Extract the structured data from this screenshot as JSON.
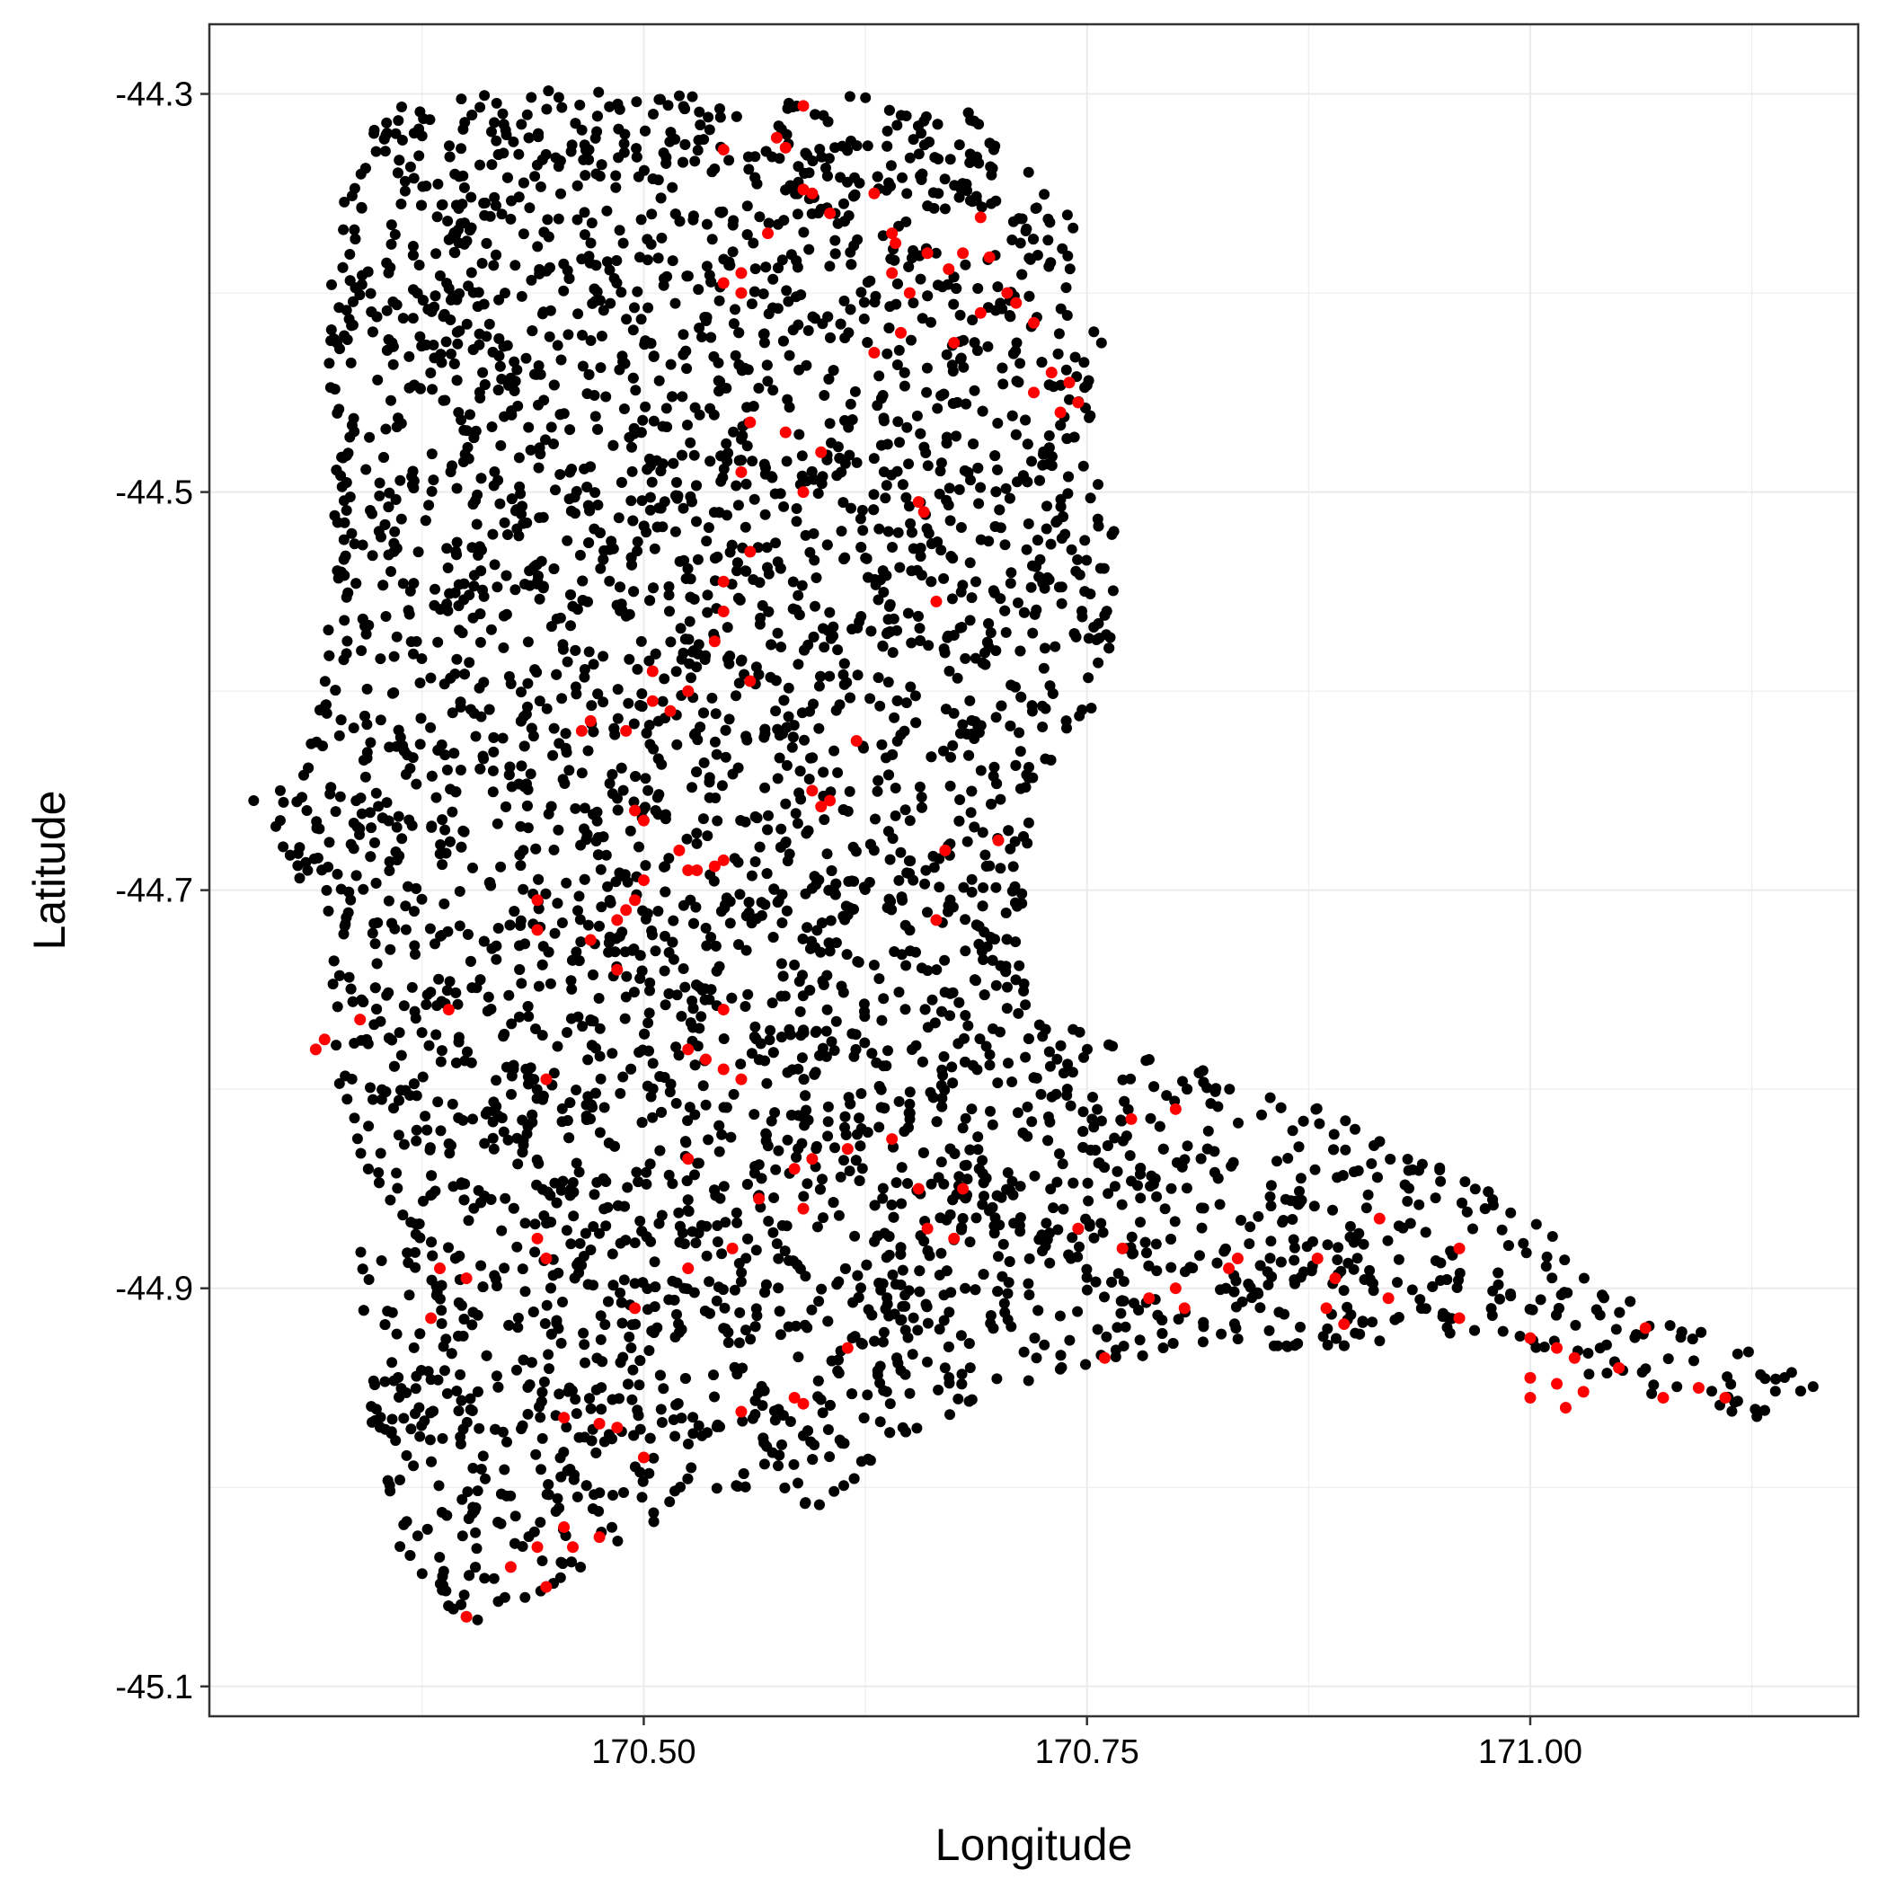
{
  "chart_data": {
    "type": "scatter",
    "title": "",
    "xlabel": "Longitude",
    "ylabel": "Latitude",
    "xlim": [
      170.255,
      171.185
    ],
    "ylim": [
      -45.115,
      -44.265
    ],
    "x_ticks": [
      170.5,
      170.75,
      171.0
    ],
    "x_tick_labels": [
      "170.50",
      "170.75",
      "171.00"
    ],
    "x_minor_ticks": [
      170.375,
      170.625,
      170.875,
      171.125
    ],
    "y_ticks": [
      -44.3,
      -44.5,
      -44.7,
      -44.9,
      -45.1
    ],
    "y_tick_labels": [
      "-44.3",
      "-44.5",
      "-44.7",
      "-44.9",
      "-45.1"
    ],
    "y_minor_ticks": [
      -44.4,
      -44.6,
      -44.8,
      -45.0
    ],
    "grid": true,
    "legend": "none",
    "colors": {
      "black_points": "#000000",
      "red_points": "#ff0000",
      "grid": "#ebebeb",
      "border": "#333333"
    },
    "series": [
      {
        "color": "#000000",
        "region_outline": [
          [
            170.345,
            -44.302
          ],
          [
            170.45,
            -44.298
          ],
          [
            170.55,
            -44.302
          ],
          [
            170.63,
            -44.298
          ],
          [
            170.68,
            -44.305
          ],
          [
            170.74,
            -44.36
          ],
          [
            170.76,
            -44.42
          ],
          [
            170.755,
            -44.47
          ],
          [
            170.77,
            -44.54
          ],
          [
            170.76,
            -44.6
          ],
          [
            170.72,
            -44.65
          ],
          [
            170.715,
            -44.72
          ],
          [
            170.72,
            -44.76
          ],
          [
            170.78,
            -44.78
          ],
          [
            170.86,
            -44.8
          ],
          [
            170.93,
            -44.83
          ],
          [
            171.0,
            -44.86
          ],
          [
            171.05,
            -44.9
          ],
          [
            171.12,
            -44.93
          ],
          [
            171.165,
            -44.948
          ],
          [
            171.13,
            -44.965
          ],
          [
            171.06,
            -44.955
          ],
          [
            170.98,
            -44.92
          ],
          [
            170.9,
            -44.93
          ],
          [
            170.82,
            -44.93
          ],
          [
            170.74,
            -44.94
          ],
          [
            170.68,
            -44.96
          ],
          [
            170.64,
            -44.98
          ],
          [
            170.6,
            -45.01
          ],
          [
            170.55,
            -45.0
          ],
          [
            170.5,
            -45.02
          ],
          [
            170.45,
            -45.05
          ],
          [
            170.42,
            -45.07
          ],
          [
            170.375,
            -45.065
          ],
          [
            170.35,
            -45.0
          ],
          [
            170.34,
            -44.92
          ],
          [
            170.33,
            -44.82
          ],
          [
            170.32,
            -44.72
          ],
          [
            170.29,
            -44.67
          ],
          [
            170.32,
            -44.6
          ],
          [
            170.325,
            -44.5
          ],
          [
            170.32,
            -44.38
          ],
          [
            170.34,
            -44.33
          ]
        ],
        "approx_point_count": 5000
      },
      {
        "color": "#ff0000",
        "points": [
          [
            170.59,
            -44.306
          ],
          [
            170.575,
            -44.322
          ],
          [
            170.58,
            -44.327
          ],
          [
            170.545,
            -44.328
          ],
          [
            170.63,
            -44.35
          ],
          [
            170.595,
            -44.35
          ],
          [
            170.605,
            -44.36
          ],
          [
            170.59,
            -44.348
          ],
          [
            170.69,
            -44.362
          ],
          [
            170.64,
            -44.37
          ],
          [
            170.57,
            -44.37
          ],
          [
            170.642,
            -44.375
          ],
          [
            170.66,
            -44.38
          ],
          [
            170.68,
            -44.38
          ],
          [
            170.695,
            -44.382
          ],
          [
            170.672,
            -44.388
          ],
          [
            170.555,
            -44.39
          ],
          [
            170.64,
            -44.39
          ],
          [
            170.545,
            -44.395
          ],
          [
            170.555,
            -44.4
          ],
          [
            170.705,
            -44.4
          ],
          [
            170.65,
            -44.4
          ],
          [
            170.71,
            -44.405
          ],
          [
            170.69,
            -44.41
          ],
          [
            170.72,
            -44.415
          ],
          [
            170.645,
            -44.42
          ],
          [
            170.675,
            -44.425
          ],
          [
            170.63,
            -44.43
          ],
          [
            170.73,
            -44.44
          ],
          [
            170.74,
            -44.445
          ],
          [
            170.72,
            -44.45
          ],
          [
            170.745,
            -44.455
          ],
          [
            170.735,
            -44.46
          ],
          [
            170.56,
            -44.465
          ],
          [
            170.58,
            -44.47
          ],
          [
            170.6,
            -44.48
          ],
          [
            170.555,
            -44.49
          ],
          [
            170.59,
            -44.5
          ],
          [
            170.655,
            -44.505
          ],
          [
            170.658,
            -44.51
          ],
          [
            170.56,
            -44.53
          ],
          [
            170.545,
            -44.545
          ],
          [
            170.665,
            -44.555
          ],
          [
            170.545,
            -44.56
          ],
          [
            170.54,
            -44.575
          ],
          [
            170.505,
            -44.59
          ],
          [
            170.56,
            -44.595
          ],
          [
            170.525,
            -44.6
          ],
          [
            170.505,
            -44.605
          ],
          [
            170.515,
            -44.61
          ],
          [
            170.47,
            -44.615
          ],
          [
            170.465,
            -44.62
          ],
          [
            170.49,
            -44.62
          ],
          [
            170.62,
            -44.625
          ],
          [
            170.595,
            -44.65
          ],
          [
            170.605,
            -44.655
          ],
          [
            170.6,
            -44.658
          ],
          [
            170.495,
            -44.66
          ],
          [
            170.5,
            -44.665
          ],
          [
            170.7,
            -44.675
          ],
          [
            170.52,
            -44.68
          ],
          [
            170.67,
            -44.68
          ],
          [
            170.545,
            -44.685
          ],
          [
            170.54,
            -44.688
          ],
          [
            170.525,
            -44.69
          ],
          [
            170.53,
            -44.69
          ],
          [
            170.5,
            -44.695
          ],
          [
            170.495,
            -44.705
          ],
          [
            170.44,
            -44.705
          ],
          [
            170.49,
            -44.71
          ],
          [
            170.665,
            -44.715
          ],
          [
            170.485,
            -44.715
          ],
          [
            170.44,
            -44.72
          ],
          [
            170.47,
            -44.725
          ],
          [
            170.485,
            -44.74
          ],
          [
            170.39,
            -44.76
          ],
          [
            170.34,
            -44.765
          ],
          [
            170.545,
            -44.76
          ],
          [
            170.32,
            -44.775
          ],
          [
            170.315,
            -44.78
          ],
          [
            170.525,
            -44.78
          ],
          [
            170.535,
            -44.785
          ],
          [
            170.545,
            -44.79
          ],
          [
            170.555,
            -44.795
          ],
          [
            170.445,
            -44.795
          ],
          [
            170.8,
            -44.81
          ],
          [
            170.775,
            -44.815
          ],
          [
            170.64,
            -44.825
          ],
          [
            170.615,
            -44.83
          ],
          [
            170.595,
            -44.835
          ],
          [
            170.525,
            -44.835
          ],
          [
            170.585,
            -44.84
          ],
          [
            170.655,
            -44.85
          ],
          [
            170.68,
            -44.85
          ],
          [
            170.565,
            -44.855
          ],
          [
            170.59,
            -44.86
          ],
          [
            170.915,
            -44.865
          ],
          [
            170.66,
            -44.87
          ],
          [
            170.745,
            -44.87
          ],
          [
            170.675,
            -44.875
          ],
          [
            170.44,
            -44.875
          ],
          [
            170.55,
            -44.88
          ],
          [
            170.96,
            -44.88
          ],
          [
            170.445,
            -44.885
          ],
          [
            170.77,
            -44.88
          ],
          [
            170.835,
            -44.885
          ],
          [
            170.88,
            -44.885
          ],
          [
            170.525,
            -44.89
          ],
          [
            170.83,
            -44.89
          ],
          [
            170.385,
            -44.89
          ],
          [
            170.4,
            -44.895
          ],
          [
            170.8,
            -44.9
          ],
          [
            170.89,
            -44.895
          ],
          [
            170.785,
            -44.905
          ],
          [
            170.92,
            -44.905
          ],
          [
            170.495,
            -44.91
          ],
          [
            170.885,
            -44.91
          ],
          [
            170.805,
            -44.91
          ],
          [
            170.38,
            -44.915
          ],
          [
            170.96,
            -44.915
          ],
          [
            170.895,
            -44.918
          ],
          [
            171.065,
            -44.92
          ],
          [
            170.615,
            -44.93
          ],
          [
            171.0,
            -44.925
          ],
          [
            171.015,
            -44.93
          ],
          [
            171.025,
            -44.935
          ],
          [
            170.76,
            -44.935
          ],
          [
            171.05,
            -44.94
          ],
          [
            171.0,
            -44.945
          ],
          [
            171.015,
            -44.948
          ],
          [
            171.03,
            -44.952
          ],
          [
            171.095,
            -44.95
          ],
          [
            171.075,
            -44.955
          ],
          [
            171.11,
            -44.955
          ],
          [
            171.0,
            -44.955
          ],
          [
            171.02,
            -44.96
          ],
          [
            170.585,
            -44.955
          ],
          [
            170.59,
            -44.958
          ],
          [
            170.555,
            -44.962
          ],
          [
            170.455,
            -44.965
          ],
          [
            170.475,
            -44.968
          ],
          [
            170.485,
            -44.97
          ],
          [
            170.5,
            -44.985
          ],
          [
            170.455,
            -45.02
          ],
          [
            170.475,
            -45.025
          ],
          [
            170.44,
            -45.03
          ],
          [
            170.46,
            -45.03
          ],
          [
            170.425,
            -45.04
          ],
          [
            170.445,
            -45.05
          ],
          [
            170.4,
            -45.065
          ]
        ]
      }
    ]
  }
}
